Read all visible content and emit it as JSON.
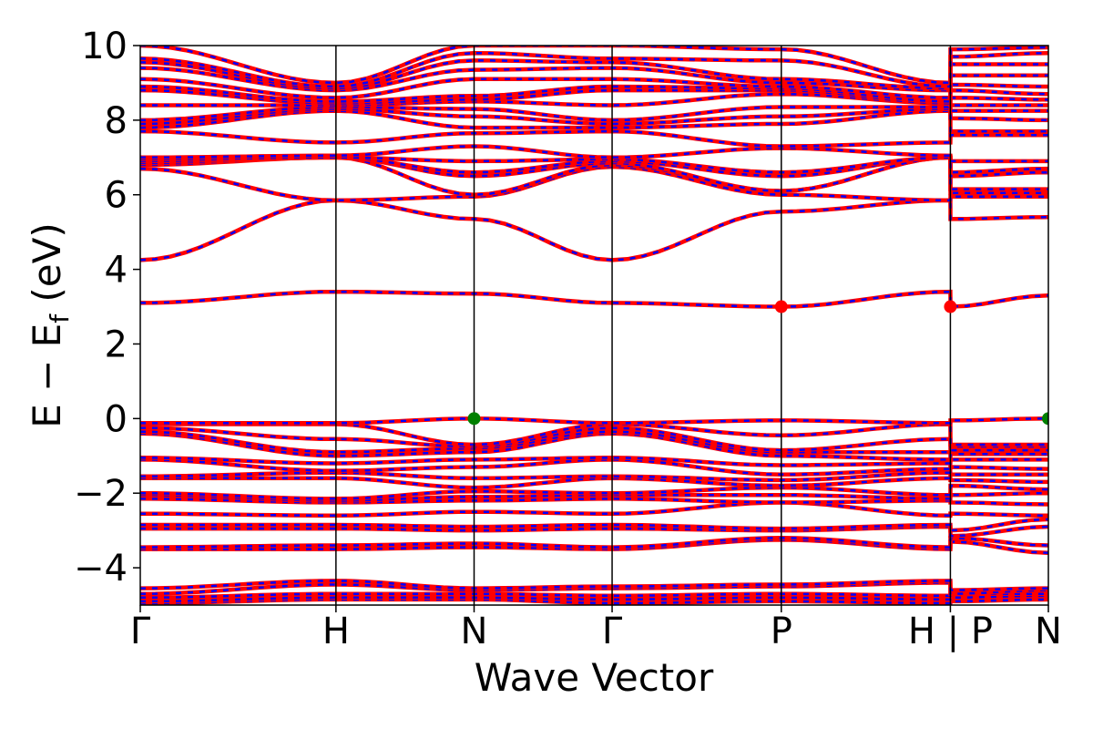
{
  "chart_data": {
    "type": "line",
    "xlabel": "Wave Vector",
    "ylabel_main": "E − E",
    "ylabel_sub": "f",
    "ylabel_unit": " (eV)",
    "ylim": [
      -5,
      10
    ],
    "yticks": [
      -4,
      -2,
      0,
      2,
      4,
      6,
      8,
      10
    ],
    "ytick_labels": [
      "−4",
      "−2",
      "0",
      "2",
      "4",
      "6",
      "8",
      "10"
    ],
    "xlim": [
      0,
      1
    ],
    "kpoints": [
      {
        "label": "Γ",
        "x": 0.0
      },
      {
        "label": "H",
        "x": 0.2155
      },
      {
        "label": "N",
        "x": 0.3676
      },
      {
        "label": "Γ",
        "x": 0.5196
      },
      {
        "label": "P",
        "x": 0.7059
      },
      {
        "label": "H | P",
        "x": 0.8921
      },
      {
        "label": "N",
        "x": 1.0
      }
    ],
    "series_colors": {
      "line": "#ff0000",
      "dash": "#0000ff"
    },
    "band_nodes_x": [
      0.0,
      0.2155,
      0.3676,
      0.5196,
      0.7059,
      0.8921,
      0.8922,
      1.0
    ],
    "bands": [
      [
        -4.95,
        -4.85,
        -4.85,
        -4.95,
        -4.9,
        -4.95,
        -4.9,
        -4.85
      ],
      [
        -4.9,
        -4.8,
        -4.8,
        -4.85,
        -4.8,
        -4.85,
        -4.8,
        -4.75
      ],
      [
        -4.8,
        -4.7,
        -4.7,
        -4.75,
        -4.7,
        -4.75,
        -4.7,
        -4.7
      ],
      [
        -4.7,
        -4.45,
        -4.6,
        -4.55,
        -4.5,
        -4.4,
        -4.7,
        -4.6
      ],
      [
        -4.55,
        -4.35,
        -4.55,
        -4.5,
        -4.45,
        -4.35,
        -4.6,
        -4.55
      ],
      [
        -3.5,
        -3.5,
        -3.45,
        -3.5,
        -3.25,
        -3.5,
        -3.3,
        -3.6
      ],
      [
        -3.45,
        -3.4,
        -3.35,
        -3.45,
        -3.2,
        -3.45,
        -3.2,
        -3.4
      ],
      [
        -2.95,
        -2.95,
        -3.0,
        -2.95,
        -3.0,
        -2.9,
        -3.15,
        -2.9
      ],
      [
        -2.85,
        -2.85,
        -2.9,
        -2.85,
        -2.95,
        -2.85,
        -3.0,
        -2.7
      ],
      [
        -2.55,
        -2.6,
        -2.5,
        -2.55,
        -2.25,
        -2.6,
        -2.55,
        -2.6
      ],
      [
        -2.15,
        -2.25,
        -2.2,
        -2.15,
        -2.25,
        -2.2,
        -2.25,
        -2.3
      ],
      [
        -2.05,
        -2.2,
        -2.1,
        -2.05,
        -2.05,
        -2.15,
        -2.05,
        -2.0
      ],
      [
        -2.0,
        -2.15,
        -1.95,
        -2.0,
        -1.85,
        -2.05,
        -1.8,
        -1.9
      ],
      [
        -1.6,
        -1.6,
        -1.85,
        -1.6,
        -1.8,
        -1.6,
        -1.65,
        -1.7
      ],
      [
        -1.55,
        -1.45,
        -1.6,
        -1.55,
        -1.65,
        -1.45,
        -1.5,
        -1.5
      ],
      [
        -1.1,
        -1.4,
        -1.3,
        -1.1,
        -1.5,
        -1.35,
        -1.3,
        -1.35
      ],
      [
        -1.05,
        -1.2,
        -1.1,
        -1.05,
        -1.25,
        -1.2,
        -1.1,
        -1.1
      ],
      [
        -0.4,
        -1.0,
        -0.9,
        -0.4,
        -1.0,
        -1.1,
        -0.95,
        -0.95
      ],
      [
        -0.35,
        -0.9,
        -0.8,
        -0.35,
        -0.9,
        -0.9,
        -0.85,
        -0.85
      ],
      [
        -0.25,
        -0.55,
        -0.75,
        -0.25,
        -0.85,
        -0.55,
        -0.75,
        -0.75
      ],
      [
        -0.15,
        -0.15,
        -0.7,
        -0.15,
        -0.45,
        -0.15,
        -0.7,
        -0.7
      ],
      [
        -0.12,
        -0.12,
        0.0,
        -0.12,
        -0.05,
        -0.12,
        -0.05,
        0.0
      ],
      [
        3.1,
        3.4,
        3.35,
        3.1,
        3.0,
        3.4,
        3.0,
        3.3
      ],
      [
        4.25,
        5.85,
        5.35,
        4.25,
        5.55,
        5.85,
        5.35,
        5.4
      ],
      [
        6.7,
        5.85,
        5.95,
        6.75,
        6.0,
        5.85,
        5.95,
        5.95
      ],
      [
        6.8,
        7.0,
        6.0,
        6.8,
        6.1,
        7.0,
        6.05,
        6.05
      ],
      [
        6.85,
        7.0,
        6.5,
        6.85,
        6.1,
        7.0,
        6.15,
        6.15
      ],
      [
        6.9,
        7.0,
        6.6,
        6.9,
        6.5,
        7.0,
        6.5,
        6.6
      ],
      [
        6.95,
        7.0,
        6.9,
        6.95,
        6.6,
        7.0,
        6.6,
        6.7
      ],
      [
        7.0,
        7.05,
        7.3,
        7.0,
        7.25,
        7.05,
        6.9,
        6.9
      ],
      [
        7.7,
        7.4,
        7.65,
        7.7,
        7.3,
        7.4,
        7.6,
        7.6
      ],
      [
        7.8,
        8.25,
        7.8,
        7.8,
        7.9,
        8.25,
        7.7,
        7.7
      ],
      [
        7.9,
        8.3,
        8.1,
        7.9,
        8.1,
        8.3,
        8.05,
        8.0
      ],
      [
        8.0,
        8.35,
        8.3,
        8.0,
        8.35,
        8.35,
        8.25,
        8.25
      ],
      [
        8.4,
        8.4,
        8.5,
        8.4,
        8.7,
        8.45,
        8.4,
        8.4
      ],
      [
        8.8,
        8.45,
        8.55,
        8.8,
        8.8,
        8.45,
        8.6,
        8.55
      ],
      [
        8.9,
        8.5,
        8.65,
        8.9,
        8.85,
        8.5,
        8.8,
        8.7
      ],
      [
        9.1,
        8.6,
        9.1,
        9.1,
        8.9,
        8.6,
        8.95,
        8.9
      ],
      [
        9.4,
        8.8,
        9.35,
        9.4,
        9.0,
        8.8,
        9.2,
        9.2
      ],
      [
        9.55,
        8.85,
        9.6,
        9.55,
        9.1,
        8.85,
        9.5,
        9.5
      ],
      [
        9.65,
        8.9,
        9.8,
        9.65,
        9.6,
        8.9,
        9.7,
        9.8
      ],
      [
        10.0,
        9.0,
        10.0,
        10.0,
        9.9,
        9.0,
        9.9,
        9.95
      ]
    ],
    "highlight_points": [
      {
        "x": 0.3676,
        "y": 0.0,
        "color": "#008000"
      },
      {
        "x": 1.0,
        "y": 0.0,
        "color": "#008000"
      },
      {
        "x": 0.7059,
        "y": 3.0,
        "color": "#ff0000"
      },
      {
        "x": 0.8921,
        "y": 3.0,
        "color": "#ff0000"
      }
    ]
  }
}
